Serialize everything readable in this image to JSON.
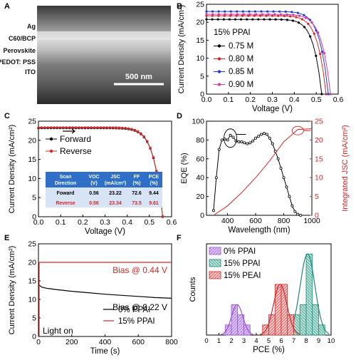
{
  "panels": {
    "A": {
      "letter": "A",
      "layers": [
        "Ag",
        "C60/BCP",
        "Perovskite",
        "PEDOT: PSS",
        "ITO"
      ],
      "scalebar": "500 nm"
    }
  },
  "chart_data": [
    {
      "panel": "B",
      "type": "line",
      "xlabel": "Voltage (V)",
      "ylabel": "Current Density (mA/cm²)",
      "xlim": [
        0,
        0.6
      ],
      "ylim": [
        0,
        25
      ],
      "xticks": [
        "0.0",
        "0.1",
        "0.2",
        "0.3",
        "0.4",
        "0.5",
        "0.6"
      ],
      "yticks": [
        "0",
        "5",
        "10",
        "15",
        "20",
        "25"
      ],
      "legend_title": "15% PPAI",
      "legend_position": "middle-left",
      "series": [
        {
          "name": "0.75 M",
          "color": "#000000",
          "jsc": 20.8,
          "voc": 0.525
        },
        {
          "name": "0.80 M",
          "color": "#d62728",
          "jsc": 21.8,
          "voc": 0.545
        },
        {
          "name": "0.85 M",
          "color": "#1f3bd6",
          "jsc": 23.0,
          "voc": 0.555
        },
        {
          "name": "0.90 M",
          "color": "#d63aa6",
          "jsc": 22.2,
          "voc": 0.565
        }
      ]
    },
    {
      "panel": "C",
      "type": "line",
      "xlabel": "Voltage (V)",
      "ylabel": "Current Density (mA/cm²)",
      "xlim": [
        0,
        0.6
      ],
      "ylim": [
        0,
        25
      ],
      "xticks": [
        "0.0",
        "0.1",
        "0.2",
        "0.3",
        "0.4",
        "0.5",
        "0.6"
      ],
      "yticks": [
        "0",
        "5",
        "10",
        "15",
        "20",
        "25"
      ],
      "series": [
        {
          "name": "Forward",
          "color": "#000000",
          "jsc": 23.22,
          "voc": 0.56
        },
        {
          "name": "Reverse",
          "color": "#d62728",
          "jsc": 23.34,
          "voc": 0.56
        }
      ],
      "table": {
        "headers": [
          "Scan Direction",
          "VOC (V)",
          "JSC (mA/cm²)",
          "FF (%)",
          "PCE (%)"
        ],
        "rows": [
          [
            "Foward",
            "0.56",
            "23.22",
            "72.6",
            "9.44"
          ],
          [
            "Reverse",
            "0.56",
            "23.34",
            "73.5",
            "9.61"
          ]
        ]
      }
    },
    {
      "panel": "D",
      "type": "line",
      "xlabel": "Wavelength (nm)",
      "ylabel": "EQE (%)",
      "ylabel_right": "Integrated JSC (mA/cm²)",
      "xlim": [
        250,
        1000
      ],
      "ylim": [
        0,
        100
      ],
      "ylim_right": [
        0,
        25
      ],
      "xticks": [
        "400",
        "600",
        "800",
        "1000"
      ],
      "yticks": [
        "0",
        "20",
        "40",
        "60",
        "80",
        "100"
      ],
      "yticks_right": [
        "0",
        "5",
        "10",
        "15",
        "20",
        "25"
      ],
      "series": [
        {
          "name": "EQE",
          "color": "#000000",
          "x": [
            300,
            320,
            340,
            360,
            380,
            400,
            420,
            440,
            460,
            480,
            500,
            520,
            540,
            560,
            580,
            600,
            620,
            640,
            660,
            680,
            700,
            720,
            740,
            760,
            780,
            800,
            820,
            840,
            860,
            880,
            900,
            920
          ],
          "y": [
            5,
            40,
            70,
            80,
            81,
            80,
            85,
            83,
            79,
            78,
            78,
            77,
            76,
            77,
            79,
            82,
            84,
            86,
            87,
            86,
            82,
            76,
            68,
            60,
            50,
            40,
            30,
            20,
            10,
            4,
            1,
            0
          ]
        },
        {
          "name": "Integrated JSC",
          "color": "#d62728",
          "axis": "right",
          "x": [
            300,
            400,
            500,
            600,
            700,
            800,
            900,
            1000
          ],
          "y": [
            0,
            2.5,
            6.0,
            10.0,
            14.5,
            19.5,
            22.8,
            23.0
          ]
        }
      ]
    },
    {
      "panel": "E",
      "type": "line",
      "xlabel": "Time (s)",
      "ylabel": "Current Density (mA/cm²)",
      "xlim": [
        0,
        800
      ],
      "ylim": [
        0,
        25
      ],
      "xticks": [
        "0",
        "200",
        "400",
        "600",
        "800"
      ],
      "yticks": [
        "0",
        "5",
        "10",
        "15",
        "20",
        "25"
      ],
      "annotations": [
        "Bias @ 0.44 V",
        "Bias @ 0.22 V",
        "Light on"
      ],
      "series": [
        {
          "name": "0% PPAI",
          "color": "#000000",
          "x": [
            0,
            10,
            20,
            50,
            100,
            200,
            300,
            400,
            500,
            600,
            700,
            800
          ],
          "y": [
            14.0,
            13.7,
            13.3,
            13.0,
            12.7,
            12.2,
            11.8,
            11.4,
            11.1,
            10.8,
            10.5,
            10.3
          ]
        },
        {
          "name": "15% PPAI",
          "color": "#d62728",
          "x": [
            0,
            800
          ],
          "y": [
            20.0,
            20.0
          ]
        }
      ]
    },
    {
      "panel": "F",
      "type": "bar",
      "xlabel": "PCE (%)",
      "ylabel": "Counts",
      "xlim": [
        0,
        10
      ],
      "ylim": [
        0,
        9
      ],
      "xticks": [
        "0",
        "1",
        "2",
        "3",
        "4",
        "5",
        "6",
        "7",
        "8",
        "9",
        "10"
      ],
      "series": [
        {
          "name": "0% PPAI",
          "color": "#9a4fd8",
          "fill": "#d9c2f2",
          "bins": [
            [
              1.5,
              2.0,
              1
            ],
            [
              2.0,
              2.5,
              3
            ],
            [
              2.5,
              3.0,
              2
            ],
            [
              3.0,
              3.5,
              1
            ]
          ]
        },
        {
          "name": "15% PPAI",
          "color": "#1f8a78",
          "fill": "#b7e0d8",
          "bins": [
            [
              6.5,
              7.0,
              1
            ],
            [
              7.0,
              7.5,
              2
            ],
            [
              7.5,
              8.0,
              3
            ],
            [
              8.0,
              8.5,
              8
            ],
            [
              8.5,
              9.0,
              3
            ],
            [
              9.0,
              9.5,
              1
            ]
          ]
        },
        {
          "name": "15% PEAI",
          "color": "#d62728",
          "fill": "#f2c4c4",
          "bins": [
            [
              4.5,
              5.0,
              1
            ],
            [
              5.0,
              5.5,
              2
            ],
            [
              5.5,
              6.0,
              5
            ],
            [
              6.0,
              6.5,
              5
            ],
            [
              6.5,
              7.0,
              2
            ]
          ]
        }
      ]
    }
  ]
}
